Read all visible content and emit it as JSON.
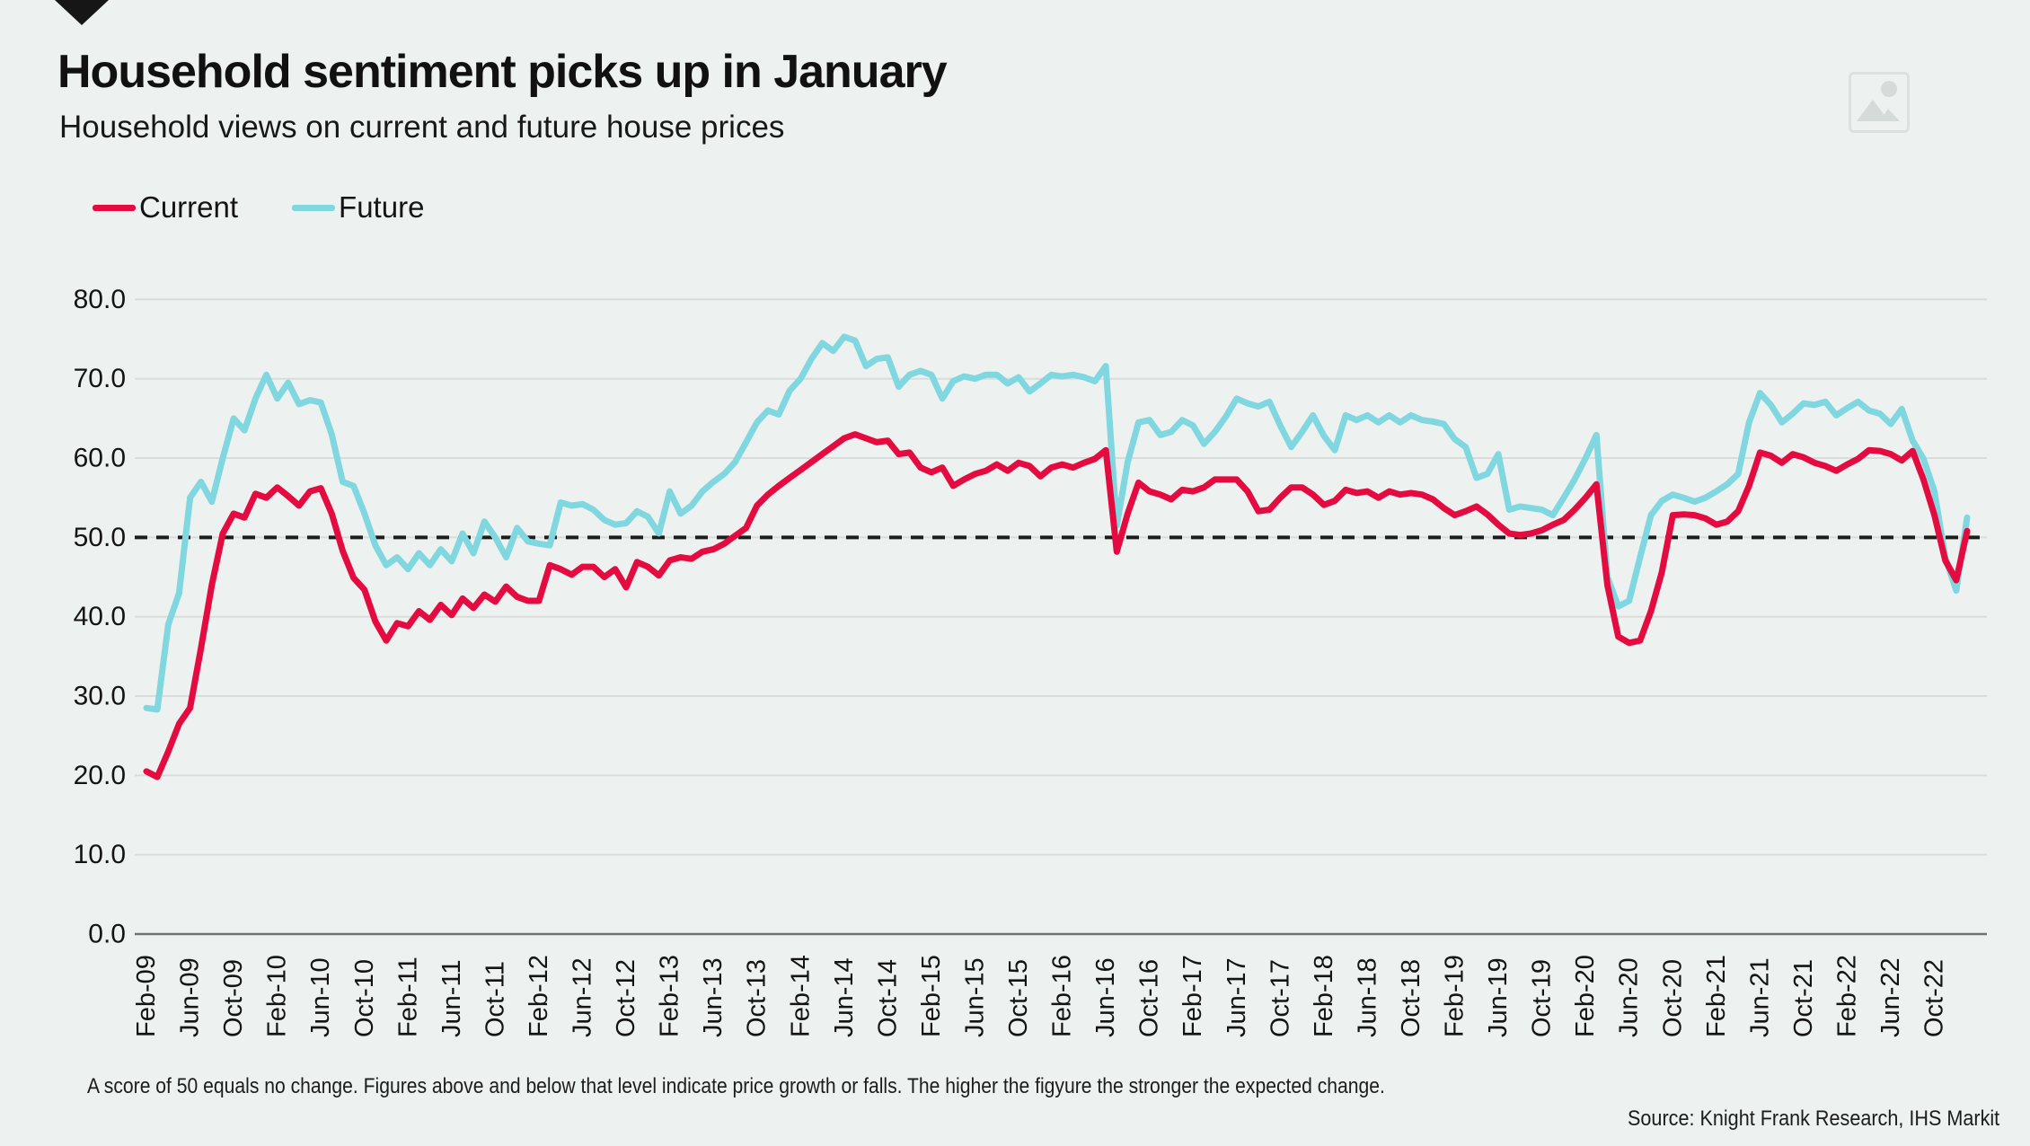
{
  "header": {
    "title": "Household sentiment picks up in January",
    "subtitle": "Household views on current and future house prices"
  },
  "legend": [
    {
      "label": "Current",
      "color": "#e40b40"
    },
    {
      "label": "Future",
      "color": "#80d7df"
    }
  ],
  "footnote": "A score of 50 equals no change. Figures above and below that level indicate price growth or falls. The higher the figyure the stronger the expected change.",
  "source": "Source: Knight Frank Research, IHS Markit",
  "icons": {
    "brand_logo": "down-triangle-icon",
    "top_right": "image-placeholder-icon"
  },
  "colors": {
    "background": "#edf2f0",
    "gridline": "#d9dcda",
    "axis_line": "#6f736f",
    "reference_dashed": "#1d1d1b",
    "text": "#141414",
    "current": "#e40b40",
    "future": "#80d7df"
  },
  "chart_data": {
    "type": "line",
    "title": "Household sentiment picks up in January",
    "xlabel": "",
    "ylabel": "",
    "ylim": [
      0,
      80
    ],
    "grid": "horizontal",
    "legend_position": "top-left",
    "frequency": "monthly",
    "x_start": "Feb-09",
    "x_end": "Jan-23",
    "tick_every": 4,
    "y_ticks": [
      "0.0",
      "10.0",
      "20.0",
      "30.0",
      "40.0",
      "50.0",
      "60.0",
      "70.0",
      "80.0"
    ],
    "x_tick_labels": [
      "Feb-09",
      "Jun-09",
      "Oct-09",
      "Feb-10",
      "Jun-10",
      "Oct-10",
      "Feb-11",
      "Jun-11",
      "Oct-11",
      "Feb-12",
      "Jun-12",
      "Oct-12",
      "Feb-13",
      "Jun-13",
      "Oct-13",
      "Feb-14",
      "Jun-14",
      "Oct-14",
      "Feb-15",
      "Jun-15",
      "Oct-15",
      "Feb-16",
      "Jun-16",
      "Oct-16",
      "Feb-17",
      "Jun-17",
      "Oct-17",
      "Feb-18",
      "Jun-18",
      "Oct-18",
      "Feb-19",
      "Jun-19",
      "Oct-19",
      "Feb-20",
      "Jun-20",
      "Oct-20",
      "Feb-21",
      "Jun-21",
      "Oct-21",
      "Feb-22",
      "Jun-22",
      "Oct-22"
    ],
    "reference_line": {
      "value": 50,
      "style": "dashed",
      "color": "#1d1d1b",
      "meaning": "no change"
    },
    "series": [
      {
        "name": "Current",
        "color": "#e40b40",
        "values": [
          20.5,
          19.8,
          23.0,
          26.5,
          28.5,
          36.0,
          44.0,
          50.5,
          53.0,
          52.5,
          55.5,
          55.0,
          56.3,
          55.2,
          54.0,
          55.8,
          56.2,
          53.0,
          48.3,
          44.9,
          43.4,
          39.4,
          37.0,
          39.2,
          38.8,
          40.7,
          39.6,
          41.5,
          40.2,
          42.3,
          41.1,
          42.8,
          41.9,
          43.8,
          42.5,
          42.0,
          42.0,
          46.5,
          46.0,
          45.3,
          46.3,
          46.3,
          45.0,
          46.0,
          43.7,
          46.9,
          46.3,
          45.2,
          47.1,
          47.5,
          47.3,
          48.2,
          48.5,
          49.2,
          50.2,
          51.2,
          54.0,
          55.4,
          56.5,
          57.5,
          58.5,
          59.5,
          60.5,
          61.5,
          62.5,
          63.0,
          62.5,
          62.0,
          62.2,
          60.5,
          60.7,
          58.8,
          58.2,
          58.8,
          56.5,
          57.3,
          58.0,
          58.4,
          59.2,
          58.4,
          59.4,
          59.0,
          57.7,
          58.8,
          59.2,
          58.8,
          59.4,
          59.9,
          61.0,
          48.2,
          53.0,
          56.9,
          55.8,
          55.4,
          54.8,
          56.0,
          55.8,
          56.3,
          57.3,
          57.3,
          57.3,
          55.8,
          53.3,
          53.5,
          55.0,
          56.3,
          56.3,
          55.4,
          54.1,
          54.6,
          56.0,
          55.6,
          55.8,
          55.0,
          55.8,
          55.4,
          55.6,
          55.4,
          54.8,
          53.7,
          52.8,
          53.3,
          53.9,
          52.9,
          51.6,
          50.5,
          50.3,
          50.5,
          50.9,
          51.6,
          52.2,
          53.5,
          55.0,
          56.7,
          44.0,
          37.5,
          36.7,
          37.0,
          40.7,
          45.6,
          52.8,
          52.9,
          52.8,
          52.4,
          51.6,
          52.0,
          53.3,
          56.5,
          60.7,
          60.3,
          59.4,
          60.5,
          60.1,
          59.4,
          59.0,
          58.4,
          59.2,
          59.9,
          61.0,
          60.9,
          60.5,
          59.7,
          60.9,
          57.3,
          52.8,
          47.1,
          44.6,
          50.8
        ]
      },
      {
        "name": "Future",
        "color": "#80d7df",
        "values": [
          28.5,
          28.3,
          39.0,
          43.0,
          55.0,
          57.0,
          54.5,
          60.0,
          65.0,
          63.5,
          67.5,
          70.5,
          67.5,
          69.5,
          66.8,
          67.3,
          67.0,
          63.0,
          57.0,
          56.5,
          53.0,
          49.0,
          46.5,
          47.5,
          46.0,
          48.0,
          46.5,
          48.5,
          47.0,
          50.5,
          48.0,
          52.0,
          50.0,
          47.5,
          51.2,
          49.5,
          49.2,
          49.0,
          54.4,
          54.0,
          54.2,
          53.5,
          52.2,
          51.6,
          51.8,
          53.3,
          52.6,
          50.5,
          55.8,
          53.0,
          54.0,
          55.8,
          57.0,
          58.0,
          59.5,
          62.0,
          64.5,
          66.0,
          65.5,
          68.5,
          70.0,
          72.5,
          74.5,
          73.5,
          75.3,
          74.8,
          71.6,
          72.5,
          72.7,
          69.0,
          70.5,
          71.0,
          70.5,
          67.5,
          69.7,
          70.3,
          70.0,
          70.5,
          70.5,
          69.4,
          70.2,
          68.4,
          69.4,
          70.5,
          70.3,
          70.5,
          70.2,
          69.7,
          71.6,
          51.5,
          59.5,
          64.5,
          64.8,
          62.9,
          63.3,
          64.8,
          64.1,
          61.8,
          63.3,
          65.2,
          67.5,
          66.9,
          66.5,
          67.1,
          64.1,
          61.4,
          63.3,
          65.4,
          62.8,
          61.0,
          65.4,
          64.8,
          65.4,
          64.5,
          65.4,
          64.5,
          65.4,
          64.8,
          64.6,
          64.3,
          62.4,
          61.4,
          57.5,
          58.0,
          60.5,
          53.5,
          53.9,
          53.7,
          53.5,
          52.8,
          55.0,
          57.3,
          60.0,
          62.9,
          45.0,
          41.3,
          42.0,
          47.5,
          52.8,
          54.6,
          55.4,
          55.0,
          54.5,
          55.0,
          55.8,
          56.7,
          58.0,
          64.5,
          68.2,
          66.7,
          64.5,
          65.6,
          66.9,
          66.7,
          67.1,
          65.4,
          66.3,
          67.1,
          66.0,
          65.6,
          64.3,
          66.2,
          62.2,
          59.9,
          55.8,
          47.5,
          43.3,
          52.5
        ]
      }
    ]
  }
}
